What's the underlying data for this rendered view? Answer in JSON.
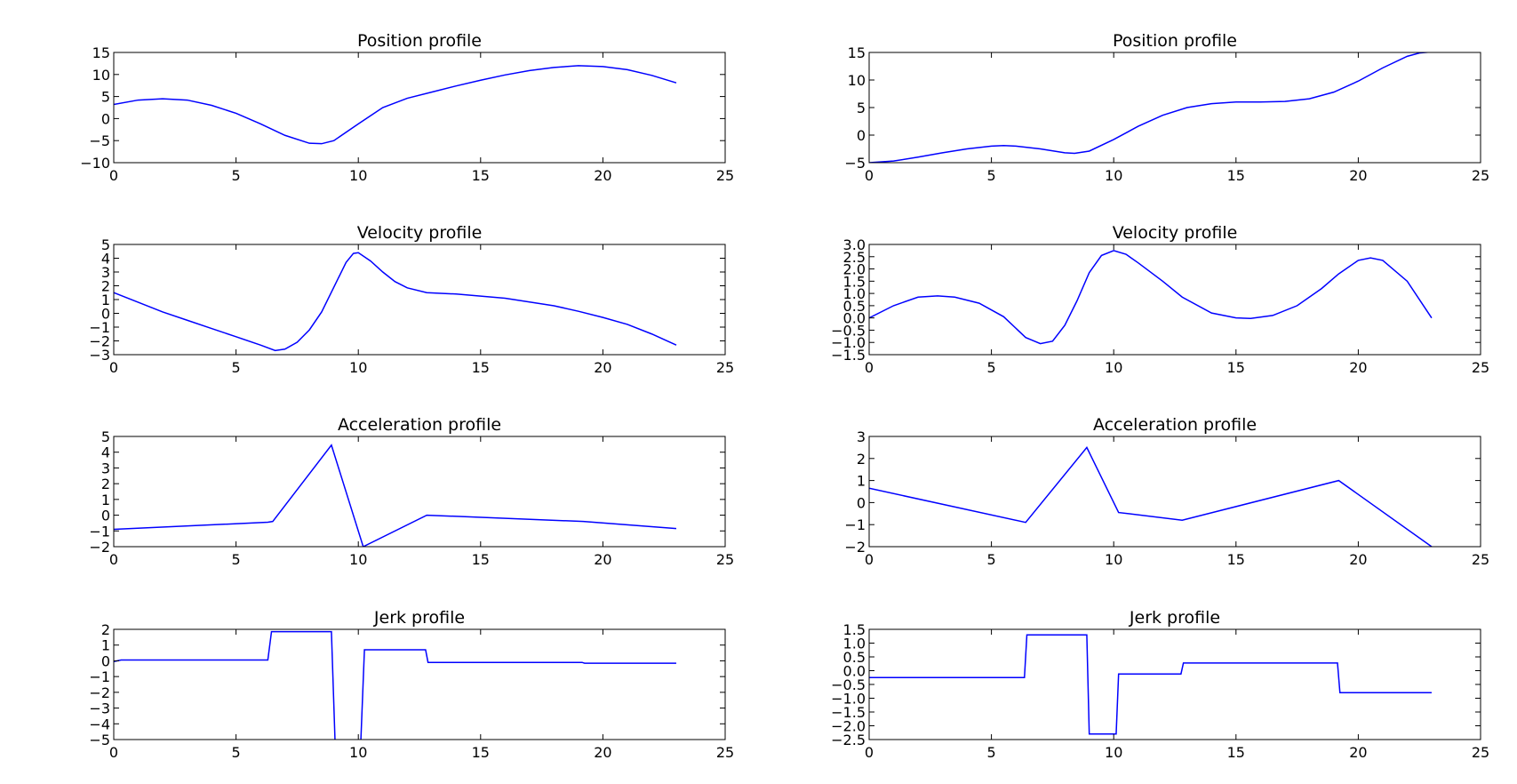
{
  "chart_data": [
    {
      "type": "line",
      "title": "Position profile",
      "xlim": [
        0,
        25
      ],
      "ylim": [
        -10,
        15
      ],
      "xticks": [
        "0",
        "5",
        "10",
        "15",
        "20",
        "25"
      ],
      "yticks": [
        "15",
        "10",
        "5",
        "0",
        "−5",
        "−10"
      ],
      "color": "#0000ff",
      "series": [
        {
          "x": [
            0,
            1,
            2,
            3,
            4,
            5,
            6,
            7,
            8,
            8.5,
            9,
            10,
            11,
            12,
            13,
            14,
            15,
            16,
            17,
            18,
            19,
            20,
            21,
            22,
            23
          ],
          "y": [
            3.2,
            4.2,
            4.5,
            4.2,
            3.0,
            1.2,
            -1.2,
            -3.8,
            -5.6,
            -5.7,
            -5.0,
            -1.2,
            2.5,
            4.6,
            6.0,
            7.4,
            8.7,
            9.9,
            10.9,
            11.6,
            12.0,
            11.8,
            11.1,
            9.8,
            8.1
          ]
        }
      ]
    },
    {
      "type": "line",
      "title": "Position profile",
      "xlim": [
        0,
        25
      ],
      "ylim": [
        -5,
        15
      ],
      "xticks": [
        "0",
        "5",
        "10",
        "15",
        "20",
        "25"
      ],
      "yticks": [
        "15",
        "10",
        "5",
        "0",
        "−5"
      ],
      "color": "#0000ff",
      "series": [
        {
          "x": [
            0,
            1,
            2,
            3,
            4,
            5,
            5.5,
            6,
            7,
            8,
            8.4,
            9,
            10,
            11,
            12,
            13,
            14,
            15,
            16,
            17,
            18,
            19,
            20,
            21,
            22,
            22.5,
            23
          ],
          "y": [
            -5.0,
            -4.7,
            -4.0,
            -3.2,
            -2.5,
            -2.0,
            -1.9,
            -2.0,
            -2.5,
            -3.2,
            -3.3,
            -2.9,
            -0.8,
            1.6,
            3.6,
            5.0,
            5.7,
            6.0,
            6.0,
            6.1,
            6.6,
            7.8,
            9.8,
            12.2,
            14.3,
            14.9,
            15.1
          ]
        }
      ]
    },
    {
      "type": "line",
      "title": "Velocity profile",
      "xlim": [
        0,
        25
      ],
      "ylim": [
        -3,
        5
      ],
      "xticks": [
        "0",
        "5",
        "10",
        "15",
        "20",
        "25"
      ],
      "yticks": [
        "5",
        "4",
        "3",
        "2",
        "1",
        "0",
        "−1",
        "−2",
        "−3"
      ],
      "color": "#0000ff",
      "series": [
        {
          "x": [
            0,
            1,
            2,
            3,
            4,
            5,
            6,
            6.6,
            7,
            7.5,
            8,
            8.5,
            9,
            9.5,
            9.8,
            10,
            10.5,
            11,
            11.5,
            12,
            12.8,
            14,
            16,
            18,
            19,
            20,
            21,
            22,
            23
          ],
          "y": [
            1.5,
            0.8,
            0.1,
            -0.5,
            -1.1,
            -1.7,
            -2.3,
            -2.7,
            -2.6,
            -2.1,
            -1.2,
            0.1,
            1.9,
            3.7,
            4.35,
            4.4,
            3.8,
            3.0,
            2.3,
            1.85,
            1.5,
            1.4,
            1.1,
            0.55,
            0.15,
            -0.3,
            -0.8,
            -1.5,
            -2.3
          ]
        }
      ]
    },
    {
      "type": "line",
      "title": "Velocity profile",
      "xlim": [
        0,
        25
      ],
      "ylim": [
        -1.5,
        3.0
      ],
      "xticks": [
        "0",
        "5",
        "10",
        "15",
        "20",
        "25"
      ],
      "yticks": [
        "3.0",
        "2.5",
        "2.0",
        "1.5",
        "1.0",
        "0.5",
        "0.0",
        "−0.5",
        "−1.0",
        "−1.5"
      ],
      "color": "#0000ff",
      "series": [
        {
          "x": [
            0,
            1,
            2,
            2.8,
            3.5,
            4.5,
            5.5,
            6.4,
            7,
            7.5,
            8,
            8.5,
            9,
            9.5,
            10,
            10.5,
            11,
            12,
            12.8,
            14,
            15,
            15.6,
            16.5,
            17.5,
            18.5,
            19.2,
            20,
            20.5,
            21,
            22,
            23
          ],
          "y": [
            0.0,
            0.5,
            0.85,
            0.9,
            0.85,
            0.6,
            0.05,
            -0.8,
            -1.05,
            -0.95,
            -0.3,
            0.7,
            1.85,
            2.55,
            2.75,
            2.6,
            2.25,
            1.5,
            0.85,
            0.2,
            0.0,
            -0.02,
            0.1,
            0.5,
            1.2,
            1.8,
            2.35,
            2.45,
            2.35,
            1.5,
            0.0
          ]
        }
      ]
    },
    {
      "type": "line",
      "title": "Acceleration profile",
      "xlim": [
        0,
        25
      ],
      "ylim": [
        -2,
        5
      ],
      "xticks": [
        "0",
        "5",
        "10",
        "15",
        "20",
        "25"
      ],
      "yticks": [
        "5",
        "4",
        "3",
        "2",
        "1",
        "0",
        "−1",
        "−2"
      ],
      "color": "#0000ff",
      "series": [
        {
          "x": [
            0,
            6.3,
            6.5,
            8.9,
            10.2,
            12.8,
            19.2,
            23
          ],
          "y": [
            -0.9,
            -0.45,
            -0.4,
            4.45,
            -2.0,
            0.0,
            -0.4,
            -0.85
          ]
        }
      ]
    },
    {
      "type": "line",
      "title": "Acceleration profile",
      "xlim": [
        0,
        25
      ],
      "ylim": [
        -2,
        3
      ],
      "xticks": [
        "0",
        "5",
        "10",
        "15",
        "20",
        "25"
      ],
      "yticks": [
        "3",
        "2",
        "1",
        "0",
        "−1",
        "−2"
      ],
      "color": "#0000ff",
      "series": [
        {
          "x": [
            0,
            6.4,
            8.9,
            10.2,
            12.8,
            19.2,
            23
          ],
          "y": [
            0.65,
            -0.9,
            2.5,
            -0.45,
            -0.8,
            1.0,
            -2.0
          ]
        }
      ]
    },
    {
      "type": "line",
      "title": "Jerk profile",
      "xlim": [
        0,
        25
      ],
      "ylim": [
        -5,
        2
      ],
      "xticks": [
        "0",
        "5",
        "10",
        "15",
        "20",
        "25"
      ],
      "yticks": [
        "2",
        "1",
        "0",
        "−1",
        "−2",
        "−3",
        "−4",
        "−5"
      ],
      "color": "#0000ff",
      "series": [
        {
          "x": [
            0,
            0.3,
            6.3,
            6.45,
            8.9,
            9.05,
            10.1,
            10.25,
            12.75,
            12.85,
            19.15,
            19.25,
            23
          ],
          "y": [
            -0.05,
            0.05,
            0.05,
            1.85,
            1.85,
            -5.2,
            -5.2,
            0.7,
            0.7,
            -0.1,
            -0.1,
            -0.15,
            -0.15
          ]
        }
      ]
    },
    {
      "type": "line",
      "title": "Jerk profile",
      "xlim": [
        0,
        25
      ],
      "ylim": [
        -2.5,
        1.5
      ],
      "xticks": [
        "0",
        "5",
        "10",
        "15",
        "20",
        "25"
      ],
      "yticks": [
        "1.5",
        "1.0",
        "0.5",
        "0.0",
        "−0.5",
        "−1.0",
        "−1.5",
        "−2.0",
        "−2.5"
      ],
      "color": "#0000ff",
      "series": [
        {
          "x": [
            0,
            6.35,
            6.45,
            8.9,
            9.0,
            10.1,
            10.2,
            12.75,
            12.85,
            19.15,
            19.25,
            23
          ],
          "y": [
            -0.25,
            -0.25,
            1.3,
            1.3,
            -2.3,
            -2.3,
            -0.12,
            -0.12,
            0.28,
            0.28,
            -0.8,
            -0.8
          ]
        }
      ]
    }
  ]
}
